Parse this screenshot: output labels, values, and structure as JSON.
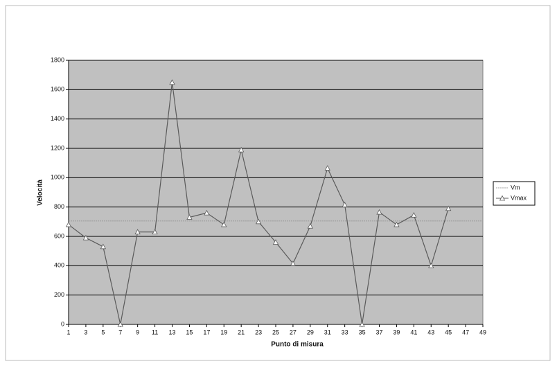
{
  "chart_data": {
    "type": "line",
    "x_label": "Punto di misura",
    "y_label": "Velocità",
    "xlim": [
      1,
      49
    ],
    "xticks": [
      1,
      3,
      5,
      7,
      9,
      11,
      13,
      15,
      17,
      19,
      21,
      23,
      25,
      27,
      29,
      31,
      33,
      35,
      37,
      39,
      41,
      43,
      45,
      47,
      49
    ],
    "ylim": [
      0,
      1800
    ],
    "yticks": [
      0,
      200,
      400,
      600,
      800,
      1000,
      1200,
      1400,
      1600,
      1800
    ],
    "grid": true,
    "legend": "right",
    "plot_background": "#c0c0c0",
    "series": [
      {
        "name": "Vm",
        "color": "#a0a0a0",
        "marker": "none",
        "x": [
          1,
          49
        ],
        "values": [
          705,
          705
        ]
      },
      {
        "name": "Vmax",
        "color": "#5a5a5a",
        "marker": "triangle",
        "x": [
          1,
          3,
          5,
          7,
          9,
          11,
          13,
          15,
          17,
          19,
          21,
          23,
          25,
          27,
          29,
          31,
          33,
          35,
          37,
          39,
          41,
          43,
          45
        ],
        "values": [
          680,
          590,
          530,
          0,
          630,
          630,
          1650,
          730,
          760,
          680,
          1190,
          700,
          560,
          415,
          670,
          1065,
          815,
          0,
          765,
          680,
          745,
          400,
          790
        ]
      }
    ]
  }
}
